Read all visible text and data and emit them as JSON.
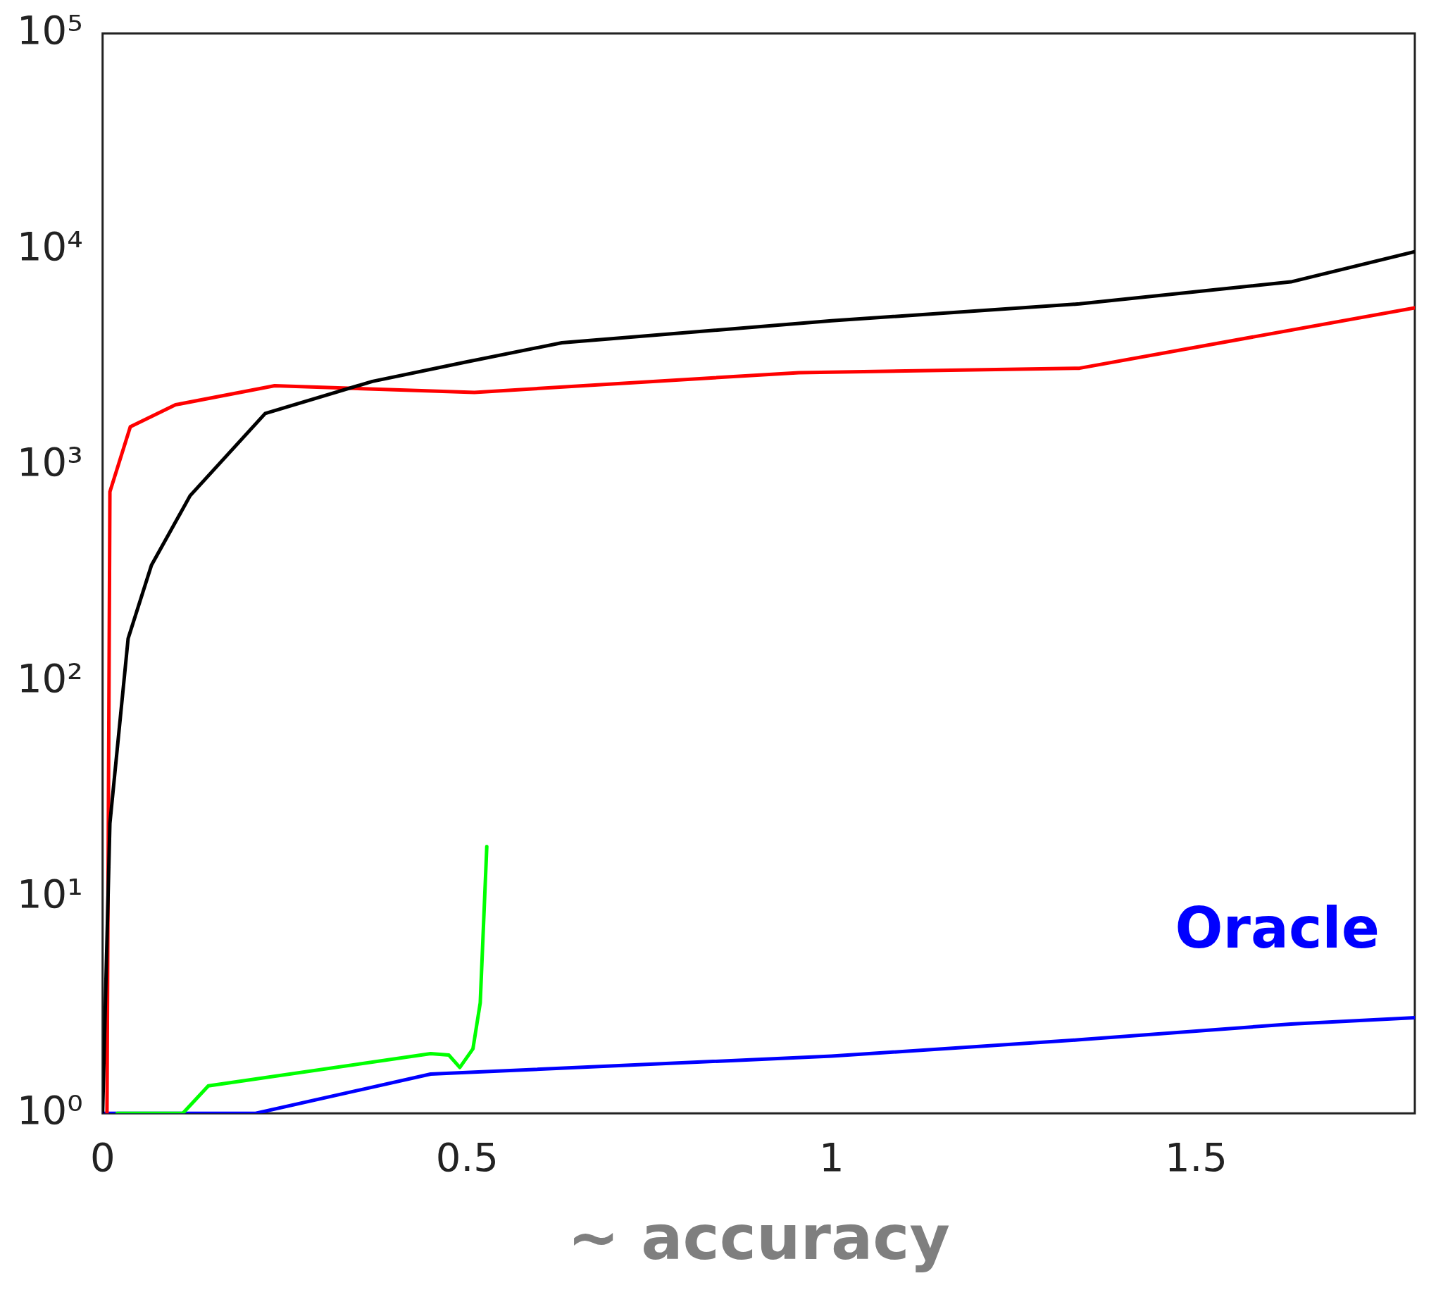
{
  "chart_data": {
    "type": "line",
    "xlabel": "~ accuracy",
    "log": "y",
    "grid": false,
    "legend": false,
    "marker": "none",
    "line_style": "solid",
    "xlim": [
      0,
      1.8
    ],
    "xticks": [
      0,
      0.5,
      1,
      1.5
    ],
    "ylim": [
      1,
      100000
    ],
    "yticks": [
      {
        "value": 1,
        "label": "10⁰"
      },
      {
        "value": 10,
        "label": "10¹"
      },
      {
        "value": 100,
        "label": "10²"
      },
      {
        "value": 1000,
        "label": "10³"
      },
      {
        "value": 10000,
        "label": "10⁴"
      },
      {
        "value": 100000,
        "label": "10⁵"
      }
    ],
    "series": [
      {
        "color": "#000000",
        "x": [
          0,
          0.01,
          0.035,
          0.067,
          0.12,
          0.223,
          0.37,
          0.5,
          0.63,
          1.0,
          1.34,
          1.63,
          1.8
        ],
        "values": [
          1,
          22,
          158,
          345,
          724,
          1740,
          2450,
          3020,
          3700,
          4680,
          5600,
          7080,
          9770
        ]
      },
      {
        "color": "#ff0000",
        "x": [
          0.006,
          0.01,
          0.038,
          0.1,
          0.236,
          0.51,
          0.955,
          1.34,
          1.8
        ],
        "values": [
          1,
          755,
          1510,
          1910,
          2340,
          2180,
          2690,
          2820,
          5370
        ]
      },
      {
        "color": "#00ff00",
        "x": [
          0.02,
          0.11,
          0.145,
          0.45,
          0.475,
          0.49,
          0.508,
          0.518,
          0.527
        ],
        "values": [
          1,
          1,
          1.34,
          1.89,
          1.86,
          1.63,
          1.99,
          3.25,
          17.2
        ]
      },
      {
        "name": "Oracle",
        "color": "#0000ff",
        "x": [
          0,
          0.21,
          0.45,
          1.0,
          1.34,
          1.63,
          1.8
        ],
        "values": [
          1,
          1,
          1.52,
          1.84,
          2.19,
          2.59,
          2.77
        ]
      }
    ]
  }
}
